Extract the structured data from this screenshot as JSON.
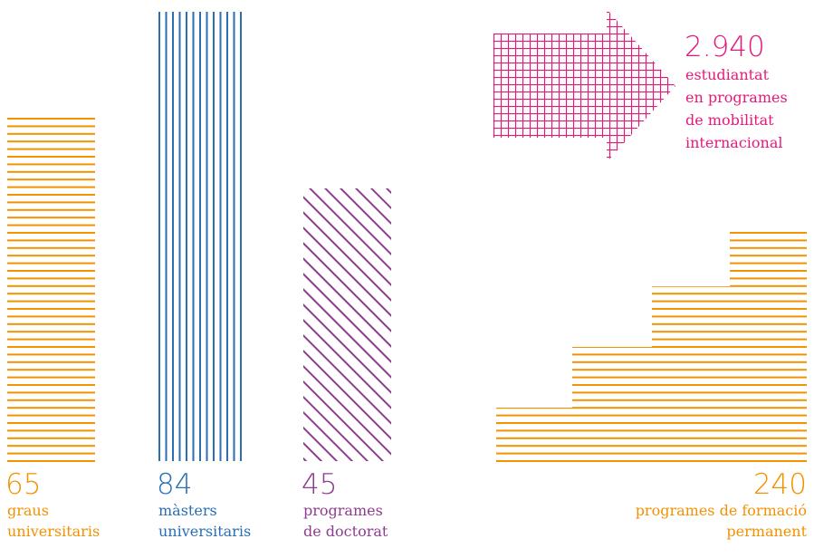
{
  "items": [
    {
      "value": "65",
      "label": [
        "graus",
        "universitaris"
      ]
    },
    {
      "value": "84",
      "label": [
        "màsters",
        "universitaris"
      ]
    },
    {
      "value": "45",
      "label": [
        "programes",
        "de doctorat"
      ]
    },
    {
      "value": "2.940",
      "label": [
        "estudiantat",
        "en programes",
        "de mobilitat",
        "internacional"
      ]
    },
    {
      "value": "240",
      "label": [
        "programes de formació",
        "permanent"
      ]
    }
  ]
}
